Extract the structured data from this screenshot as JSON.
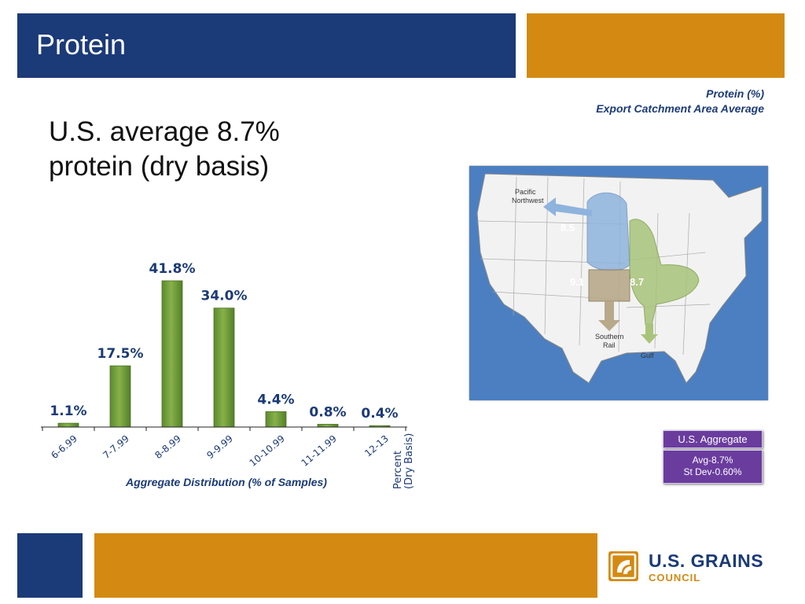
{
  "slide": {
    "title": "Protein",
    "headline_line1": "U.S. average 8.7%",
    "headline_line2": "protein (dry basis)"
  },
  "map": {
    "caption_line1": "Protein (%)",
    "caption_line2": "Export Catchment Area Average",
    "labels": {
      "pacific_nw": "Pacific Northwest",
      "southern_rail": "Southern Rail",
      "gulf": "Gulf"
    },
    "values": {
      "pacific_nw": "8.5",
      "southern_rail": "9.1",
      "gulf": "8.7"
    },
    "colors": {
      "ocean": "#4b7fc1",
      "pnw": "#8eb3dd",
      "rail": "#b8a98a",
      "gulf": "#a8c47a"
    }
  },
  "aggregate": {
    "header": "U.S. Aggregate",
    "avg": "Avg-8.7%",
    "stdev": "St Dev-0.60%"
  },
  "logo": {
    "line1": "U.S. GRAINS",
    "line2": "COUNCIL"
  },
  "chart_data": {
    "type": "bar",
    "categories": [
      "6-6.99",
      "7-7.99",
      "8-8.99",
      "9-9.99",
      "10-10.99",
      "11-11.99",
      "12-13"
    ],
    "values": [
      1.1,
      17.5,
      41.8,
      34.0,
      4.4,
      0.8,
      0.4
    ],
    "value_labels": [
      "1.1%",
      "17.5%",
      "41.8%",
      "34.0%",
      "4.4%",
      "0.8%",
      "0.4%"
    ],
    "xlabel": "Aggregate Distribution (% of Samples)",
    "unit_label_line1": "Percent",
    "unit_label_line2": "(Dry Basis)",
    "ylim": [
      0,
      44
    ],
    "color": "#77a040"
  }
}
